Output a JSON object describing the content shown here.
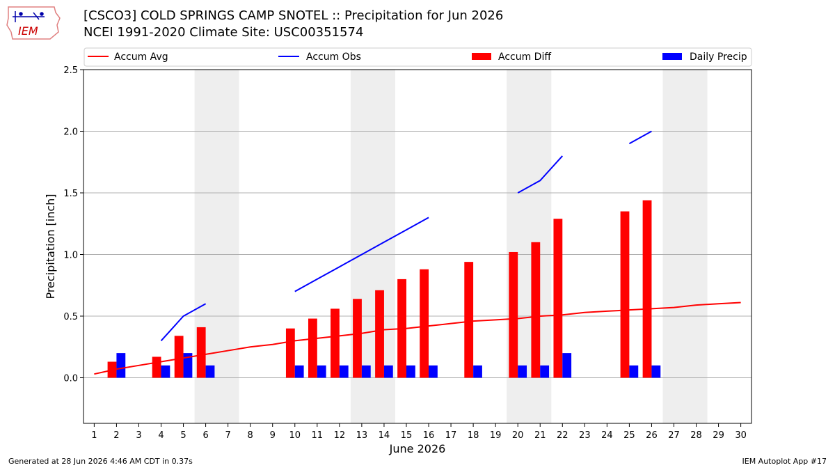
{
  "header": {
    "logo_text": "IEM",
    "title_line1": "[CSCO3] COLD SPRINGS CAMP SNOTEL :: Precipitation for Jun 2026",
    "title_line2": "NCEI 1991-2020 Climate Site: USC00351574"
  },
  "footer": {
    "left": "Generated at 28 Jun 2026 4:46 AM CDT in 0.37s",
    "right": "IEM Autoplot App #17"
  },
  "colors": {
    "accum_avg": "#ff0000",
    "accum_obs": "#0000ff",
    "accum_diff": "#ff0000",
    "daily_precip": "#0000ff",
    "weekend_band": "#eeeeee",
    "grid": "#b0b0b0"
  },
  "chart_data": {
    "type": "bar",
    "xlabel": "June 2026",
    "ylabel": "Precipitation [inch]",
    "ylim": [
      -0.37,
      2.5
    ],
    "yticks": [
      0.0,
      0.5,
      1.0,
      1.5,
      2.0,
      2.5
    ],
    "ytick_labels": [
      "0.0",
      "0.5",
      "1.0",
      "1.5",
      "2.0",
      "2.5"
    ],
    "x": [
      1,
      2,
      3,
      4,
      5,
      6,
      7,
      8,
      9,
      10,
      11,
      12,
      13,
      14,
      15,
      16,
      17,
      18,
      19,
      20,
      21,
      22,
      23,
      24,
      25,
      26,
      27,
      28,
      29,
      30
    ],
    "weekend_days": [
      6,
      7,
      13,
      14,
      20,
      21,
      27,
      28
    ],
    "grid": "horizontal",
    "legend": {
      "placement": "top",
      "entries": [
        {
          "label": "Accum Avg",
          "kind": "line",
          "color": "#ff0000"
        },
        {
          "label": "Accum Obs",
          "kind": "line",
          "color": "#0000ff"
        },
        {
          "label": "Accum Diff",
          "kind": "bar",
          "color": "#ff0000"
        },
        {
          "label": "Daily Precip",
          "kind": "bar",
          "color": "#0000ff"
        }
      ]
    },
    "series": [
      {
        "name": "Accum Avg",
        "type": "line",
        "x": [
          1,
          2,
          3,
          4,
          5,
          6,
          7,
          8,
          9,
          10,
          11,
          12,
          13,
          14,
          15,
          16,
          17,
          18,
          19,
          20,
          21,
          22,
          23,
          24,
          25,
          26,
          27,
          28,
          29,
          30
        ],
        "values": [
          0.03,
          0.07,
          0.1,
          0.13,
          0.16,
          0.19,
          0.22,
          0.25,
          0.27,
          0.3,
          0.32,
          0.34,
          0.36,
          0.39,
          0.4,
          0.42,
          0.44,
          0.46,
          0.47,
          0.48,
          0.5,
          0.51,
          0.53,
          0.54,
          0.55,
          0.56,
          0.57,
          0.59,
          0.6,
          0.61
        ]
      },
      {
        "name": "Accum Obs",
        "type": "line",
        "segments": [
          {
            "x": [
              4,
              5,
              6
            ],
            "values": [
              0.3,
              0.5,
              0.6
            ]
          },
          {
            "x": [
              10,
              11,
              12,
              13,
              14,
              15,
              16
            ],
            "values": [
              0.7,
              0.8,
              0.9,
              1.0,
              1.1,
              1.2,
              1.3
            ]
          },
          {
            "x": [
              20,
              21,
              22
            ],
            "values": [
              1.5,
              1.6,
              1.8
            ]
          },
          {
            "x": [
              25,
              26
            ],
            "values": [
              1.9,
              2.0
            ]
          }
        ]
      },
      {
        "name": "Accum Diff",
        "type": "bar",
        "x": [
          2,
          4,
          5,
          6,
          10,
          11,
          12,
          13,
          14,
          15,
          16,
          18,
          20,
          21,
          22,
          25,
          26
        ],
        "values": [
          0.13,
          0.17,
          0.34,
          0.41,
          0.4,
          0.48,
          0.56,
          0.64,
          0.71,
          0.8,
          0.88,
          0.94,
          1.02,
          1.1,
          1.29,
          1.35,
          1.44
        ]
      },
      {
        "name": "Daily Precip",
        "type": "bar",
        "x": [
          2,
          4,
          5,
          6,
          10,
          11,
          12,
          13,
          14,
          15,
          16,
          18,
          20,
          21,
          22,
          25,
          26
        ],
        "values": [
          0.2,
          0.1,
          0.2,
          0.1,
          0.1,
          0.1,
          0.1,
          0.1,
          0.1,
          0.1,
          0.1,
          0.1,
          0.1,
          0.1,
          0.2,
          0.1,
          0.1
        ]
      }
    ]
  }
}
